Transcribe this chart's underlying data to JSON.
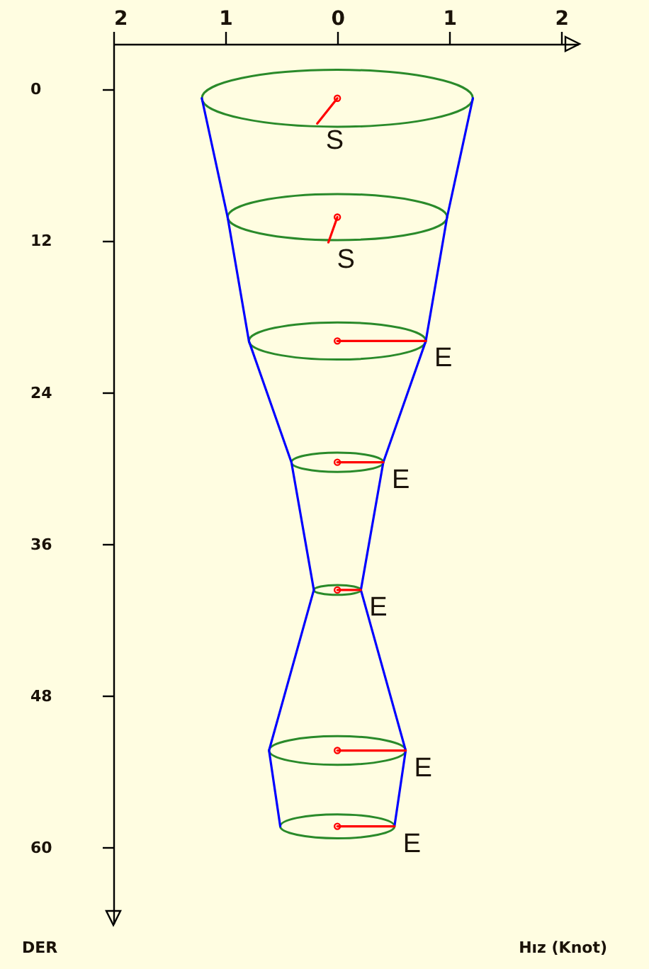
{
  "chart_data": {
    "type": "line",
    "xlabel": "Hız (Knot)",
    "ylabel": "DER",
    "xlim": [
      -2,
      2.15
    ],
    "xticks": [
      {
        "value": -2,
        "label": "2"
      },
      {
        "value": -1,
        "label": "1"
      },
      0,
      1,
      2
    ],
    "ylim": [
      66,
      -3.6
    ],
    "yticks": [
      0,
      12,
      24,
      36,
      48,
      60
    ],
    "series": [
      {
        "color": "#0000ff",
        "x": [
          -1.21,
          -0.98,
          -0.79,
          -0.41,
          -0.21,
          -0.61,
          -0.51
        ],
        "values": [
          0.7,
          10.1,
          19.9,
          29.5,
          39.6,
          52.3,
          58.3
        ]
      },
      {
        "color": "#0000ff",
        "x": [
          1.21,
          0.98,
          0.79,
          0.41,
          0.21,
          0.61,
          0.51
        ],
        "values": [
          0.7,
          10.1,
          19.9,
          29.5,
          39.6,
          52.3,
          58.3
        ]
      },
      {
        "color": "#ff0000",
        "x": [
          0,
          -0.18
        ],
        "values": [
          0.7,
          2.7
        ]
      },
      {
        "color": "#ff0000",
        "x": [
          0,
          -0.08
        ],
        "values": [
          10.1,
          12.1
        ]
      },
      {
        "color": "#ff0000",
        "x": [
          0,
          0.79
        ],
        "values": [
          19.9,
          19.9
        ]
      },
      {
        "color": "#ff0000",
        "x": [
          0,
          0.41
        ],
        "values": [
          29.5,
          29.5
        ]
      },
      {
        "color": "#ff0000",
        "x": [
          0,
          0.21
        ],
        "values": [
          39.6,
          39.6
        ]
      },
      {
        "color": "#ff0000",
        "x": [
          0,
          0.61
        ],
        "values": [
          52.3,
          52.3
        ]
      },
      {
        "color": "#ff0000",
        "x": [
          0,
          0.51
        ],
        "values": [
          58.3,
          58.3
        ]
      },
      {
        "type": "scatter",
        "color": "#ff0000",
        "marker": "circle",
        "x": [
          0,
          0,
          0,
          0,
          0,
          0,
          0
        ],
        "values": [
          0.7,
          10.1,
          19.9,
          29.5,
          39.6,
          52.3,
          58.3
        ]
      }
    ],
    "annotations": [
      {
        "text": "S",
        "x": -0.18,
        "y": 2.7
      },
      {
        "text": "S",
        "x": -0.08,
        "y": 12.1
      },
      {
        "text": "E",
        "x": 0.79,
        "y": 19.9
      },
      {
        "text": "E",
        "x": 0.41,
        "y": 29.5
      },
      {
        "text": "E",
        "x": 0.21,
        "y": 39.6
      },
      {
        "text": "E",
        "x": 0.61,
        "y": 52.3
      },
      {
        "text": "E",
        "x": 0.51,
        "y": 58.3
      }
    ]
  }
}
